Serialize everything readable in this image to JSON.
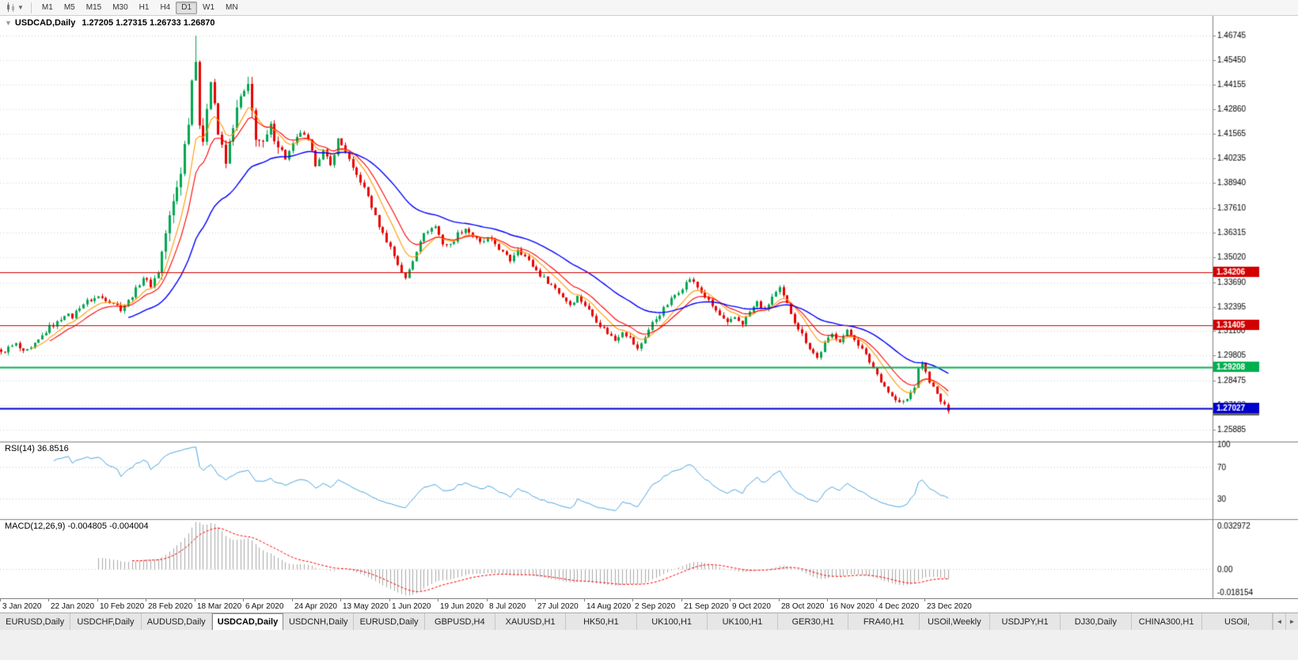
{
  "toolbar": {
    "timeframes": [
      "M1",
      "M5",
      "M15",
      "M30",
      "H1",
      "H4",
      "D1",
      "W1",
      "MN"
    ],
    "selected_timeframe": "D1",
    "chart_type_icon": "candlestick-chart-icon",
    "dropdown_icon": "chevron-down-icon"
  },
  "chart": {
    "title": "USDCAD,Daily",
    "ohlc": "1.27205 1.27315 1.26733 1.26870",
    "indicator_rsi_label": "RSI(14) 36.8516",
    "indicator_macd_label": "MACD(12,26,9) -0.004805 -0.004004"
  },
  "chart_data": {
    "type": "candlestick",
    "symbol": "USDCAD",
    "timeframe": "Daily",
    "ohlc_display": {
      "open": "1.27205",
      "high": "1.27315",
      "low": "1.26733",
      "close": "1.26870"
    },
    "num_bars": 254,
    "bars_per_label": 13,
    "x_labels": [
      "3 Jan 2020",
      "22 Jan 2020",
      "10 Feb 2020",
      "28 Feb 2020",
      "18 Mar 2020",
      "6 Apr 2020",
      "24 Apr 2020",
      "13 May 2020",
      "1 Jun 2020",
      "19 Jun 2020",
      "8 Jul 2020",
      "27 Jul 2020",
      "14 Aug 2020",
      "2 Sep 2020",
      "21 Sep 2020",
      "9 Oct 2020",
      "28 Oct 2020",
      "16 Nov 2020",
      "4 Dec 2020",
      "23 Dec 2020"
    ],
    "price_ticks": [
      "1.46745",
      "1.45450",
      "1.44155",
      "1.42860",
      "1.41565",
      "1.40235",
      "1.38940",
      "1.37610",
      "1.36315",
      "1.35020",
      "1.33690",
      "1.32395",
      "1.31100",
      "1.29805",
      "1.28475",
      "1.27180",
      "1.25885"
    ],
    "price_max": 1.478,
    "price_min": 1.2525,
    "close_anchors": [
      [
        0,
        1.2993
      ],
      [
        2,
        1.302
      ],
      [
        4,
        1.304
      ],
      [
        6,
        1.2995
      ],
      [
        8,
        1.3015
      ],
      [
        10,
        1.306
      ],
      [
        13,
        1.3132
      ],
      [
        15,
        1.3155
      ],
      [
        17,
        1.32
      ],
      [
        19,
        1.3185
      ],
      [
        21,
        1.324
      ],
      [
        23,
        1.3268
      ],
      [
        26,
        1.3292
      ],
      [
        28,
        1.328
      ],
      [
        30,
        1.3262
      ],
      [
        32,
        1.3228
      ],
      [
        34,
        1.327
      ],
      [
        36,
        1.333
      ],
      [
        38,
        1.3395
      ],
      [
        40,
        1.3352
      ],
      [
        42,
        1.3425
      ],
      [
        44,
        1.363
      ],
      [
        46,
        1.379
      ],
      [
        48,
        1.396
      ],
      [
        50,
        1.423
      ],
      [
        51,
        1.444
      ],
      [
        52,
        1.4565
      ],
      [
        53,
        1.421
      ],
      [
        54,
        1.4085
      ],
      [
        55,
        1.4305
      ],
      [
        56,
        1.4455
      ],
      [
        57,
        1.432
      ],
      [
        58,
        1.4155
      ],
      [
        60,
        1.3995
      ],
      [
        62,
        1.4205
      ],
      [
        64,
        1.4345
      ],
      [
        66,
        1.4395
      ],
      [
        68,
        1.4145
      ],
      [
        70,
        1.409
      ],
      [
        72,
        1.4185
      ],
      [
        74,
        1.4105
      ],
      [
        76,
        1.4025
      ],
      [
        78,
        1.4095
      ],
      [
        80,
        1.4165
      ],
      [
        82,
        1.4115
      ],
      [
        84,
        1.3995
      ],
      [
        86,
        1.4065
      ],
      [
        88,
        1.3985
      ],
      [
        90,
        1.4125
      ],
      [
        92,
        1.4065
      ],
      [
        94,
        1.3965
      ],
      [
        96,
        1.3905
      ],
      [
        98,
        1.3825
      ],
      [
        100,
        1.3715
      ],
      [
        102,
        1.3625
      ],
      [
        104,
        1.3555
      ],
      [
        106,
        1.3465
      ],
      [
        108,
        1.3385
      ],
      [
        110,
        1.3485
      ],
      [
        112,
        1.3595
      ],
      [
        114,
        1.3645
      ],
      [
        116,
        1.3665
      ],
      [
        118,
        1.3575
      ],
      [
        120,
        1.3565
      ],
      [
        122,
        1.3625
      ],
      [
        124,
        1.3655
      ],
      [
        126,
        1.3615
      ],
      [
        128,
        1.3575
      ],
      [
        130,
        1.3598
      ],
      [
        132,
        1.3572
      ],
      [
        134,
        1.3525
      ],
      [
        136,
        1.3485
      ],
      [
        138,
        1.3548
      ],
      [
        140,
        1.3505
      ],
      [
        142,
        1.3455
      ],
      [
        144,
        1.3408
      ],
      [
        146,
        1.3372
      ],
      [
        148,
        1.3338
      ],
      [
        150,
        1.3292
      ],
      [
        152,
        1.3252
      ],
      [
        154,
        1.3292
      ],
      [
        156,
        1.3248
      ],
      [
        158,
        1.3192
      ],
      [
        160,
        1.3142
      ],
      [
        162,
        1.3102
      ],
      [
        164,
        1.3062
      ],
      [
        166,
        1.3112
      ],
      [
        168,
        1.3072
      ],
      [
        170,
        1.3012
      ],
      [
        172,
        1.3082
      ],
      [
        174,
        1.3152
      ],
      [
        176,
        1.3202
      ],
      [
        178,
        1.3252
      ],
      [
        180,
        1.3302
      ],
      [
        182,
        1.3342
      ],
      [
        184,
        1.3388
      ],
      [
        186,
        1.3342
      ],
      [
        188,
        1.3292
      ],
      [
        190,
        1.3242
      ],
      [
        192,
        1.3192
      ],
      [
        194,
        1.3148
      ],
      [
        196,
        1.3182
      ],
      [
        198,
        1.3152
      ],
      [
        200,
        1.3212
      ],
      [
        202,
        1.3262
      ],
      [
        204,
        1.3218
      ],
      [
        206,
        1.3292
      ],
      [
        208,
        1.3332
      ],
      [
        210,
        1.3252
      ],
      [
        212,
        1.3162
      ],
      [
        214,
        1.3092
      ],
      [
        216,
        1.3022
      ],
      [
        218,
        1.2968
      ],
      [
        220,
        1.3042
      ],
      [
        222,
        1.3092
      ],
      [
        224,
        1.3062
      ],
      [
        226,
        1.3108
      ],
      [
        228,
        1.3072
      ],
      [
        230,
        1.3012
      ],
      [
        232,
        1.2948
      ],
      [
        234,
        1.2882
      ],
      [
        236,
        1.2818
      ],
      [
        238,
        1.2762
      ],
      [
        240,
        1.2728
      ],
      [
        242,
        1.2748
      ],
      [
        244,
        1.2818
      ],
      [
        245,
        1.2902
      ],
      [
        246,
        1.2948
      ],
      [
        247,
        1.2888
      ],
      [
        249,
        1.2808
      ],
      [
        251,
        1.2738
      ],
      [
        253,
        1.2687
      ]
    ],
    "spike": {
      "bar": 52,
      "high": 1.46745
    },
    "last_bar": {
      "o": 1.27205,
      "h": 1.27315,
      "l": 1.26733,
      "c": 1.2687
    },
    "candle_up_color": "#00a651",
    "candle_down_color": "#e80000",
    "grid_color": "#d4d4d4",
    "moving_averages": [
      {
        "name": "fast-ma",
        "period": 8,
        "color": "#ff9900"
      },
      {
        "name": "medium-ma",
        "period": 13,
        "color": "#ff0000"
      },
      {
        "name": "slow-ma",
        "period": 34,
        "color": "#0000ff"
      }
    ],
    "hlines": [
      {
        "value": 1.34206,
        "label": "1.34206",
        "color": "#d20000",
        "width": 1
      },
      {
        "value": 1.31405,
        "label": "1.31405",
        "color": "#d20000",
        "width": 1
      },
      {
        "value": 1.29208,
        "label": "1.29208",
        "color": "#00b050",
        "width": 2
      },
      {
        "value": 1.27027,
        "label": "1.27027",
        "color": "#0000cc",
        "width": 2
      }
    ],
    "current_price_tag": {
      "value": 1.2687,
      "label": "1.26870",
      "color": "#606060"
    },
    "rsi": {
      "title": "RSI(14) 36.8516",
      "period": 14,
      "current": 36.8516,
      "levels": [
        100,
        70,
        30
      ],
      "line_color": "#4ea6de",
      "range_max": 103,
      "range_min": 3
    },
    "macd": {
      "title": "MACD(12,26,9) -0.004805 -0.004004",
      "fast": 12,
      "slow": 26,
      "signal": 9,
      "macd_current": -0.004805,
      "signal_current": -0.004004,
      "axis_labels": [
        "0.032972",
        "0.00",
        "-0.018154"
      ],
      "hist_color": "#a8a8a8",
      "signal_color": "#ff0000"
    }
  },
  "tabs": {
    "items": [
      "EURUSD,Daily",
      "USDCHF,Daily",
      "AUDUSD,Daily",
      "USDCAD,Daily",
      "USDCNH,Daily",
      "EURUSD,Daily",
      "GBPUSD,H4",
      "XAUUSD,H1",
      "HK50,H1",
      "UK100,H1",
      "UK100,H1",
      "GER30,H1",
      "FRA40,H1",
      "USOil,Weekly",
      "USDJPY,H1",
      "DJ30,Daily",
      "CHINA300,H1",
      "USOil,"
    ],
    "selected_index": 3,
    "nav_left": "◄",
    "nav_right": "►"
  }
}
